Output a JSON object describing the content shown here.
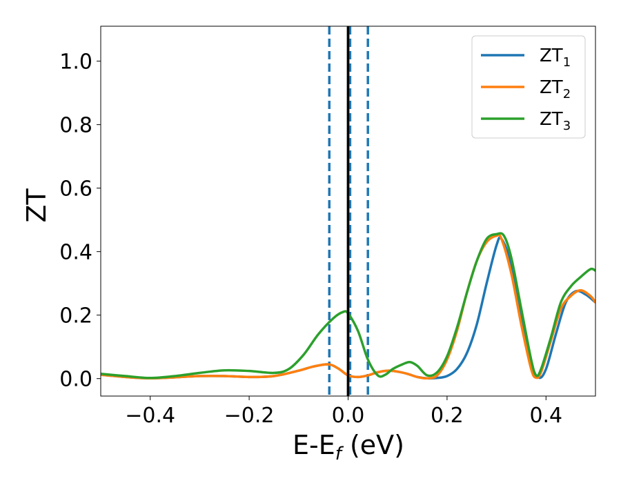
{
  "chart_data": {
    "type": "line",
    "xlabel": {
      "main": "E-E",
      "sub": "f",
      "unit": " (eV)"
    },
    "ylabel": "ZT",
    "xlim": [
      -0.5,
      0.5
    ],
    "ylim": [
      -0.055,
      1.11
    ],
    "xticks": [
      -0.4,
      -0.2,
      0.0,
      0.2,
      0.4
    ],
    "xtick_labels": [
      "−0.4",
      "−0.2",
      "0.0",
      "0.2",
      "0.4"
    ],
    "yticks": [
      0.0,
      0.2,
      0.4,
      0.6,
      0.8,
      1.0
    ],
    "ytick_labels": [
      "0.0",
      "0.2",
      "0.4",
      "0.6",
      "0.8",
      "1.0"
    ],
    "grid": false,
    "legend_position": "top-right",
    "reference_lines": [
      {
        "x": 0.0,
        "style": "solid",
        "color": "#000000"
      },
      {
        "x": -0.038,
        "style": "dashed",
        "color": "#1f77b4"
      },
      {
        "x": 0.004,
        "style": "dashed",
        "color": "#1f77b4"
      },
      {
        "x": 0.04,
        "style": "dashed",
        "color": "#1f77b4"
      }
    ],
    "series": [
      {
        "name": "ZT",
        "name_sub": "1",
        "color": "#1f77b4",
        "x": [
          -0.5,
          -0.45,
          -0.4,
          -0.35,
          -0.3,
          -0.25,
          -0.2,
          -0.15,
          -0.1,
          -0.07,
          -0.04,
          -0.02,
          0.0,
          0.02,
          0.04,
          0.06,
          0.08,
          0.1,
          0.12,
          0.14,
          0.16,
          0.18,
          0.2,
          0.22,
          0.24,
          0.26,
          0.28,
          0.3,
          0.31,
          0.33,
          0.35,
          0.37,
          0.385,
          0.4,
          0.42,
          0.44,
          0.46,
          0.48,
          0.5
        ],
        "y": [
          0.012,
          0.005,
          0.001,
          0.004,
          0.008,
          0.008,
          0.005,
          0.008,
          0.025,
          0.038,
          0.045,
          0.032,
          0.01,
          0.005,
          0.01,
          0.02,
          0.025,
          0.022,
          0.015,
          0.005,
          0.001,
          0.002,
          0.008,
          0.03,
          0.08,
          0.17,
          0.3,
          0.42,
          0.44,
          0.36,
          0.2,
          0.05,
          0.003,
          0.03,
          0.14,
          0.24,
          0.275,
          0.265,
          0.24
        ]
      },
      {
        "name": "ZT",
        "name_sub": "2",
        "color": "#ff7f0e",
        "x": [
          -0.5,
          -0.45,
          -0.4,
          -0.35,
          -0.3,
          -0.25,
          -0.2,
          -0.15,
          -0.1,
          -0.07,
          -0.04,
          -0.02,
          0.0,
          0.02,
          0.04,
          0.06,
          0.08,
          0.1,
          0.12,
          0.14,
          0.16,
          0.18,
          0.2,
          0.22,
          0.24,
          0.26,
          0.28,
          0.3,
          0.31,
          0.33,
          0.35,
          0.37,
          0.38,
          0.39,
          0.41,
          0.43,
          0.45,
          0.47,
          0.49,
          0.5
        ],
        "y": [
          0.012,
          0.005,
          0.001,
          0.004,
          0.008,
          0.008,
          0.005,
          0.008,
          0.025,
          0.038,
          0.045,
          0.032,
          0.01,
          0.005,
          0.01,
          0.02,
          0.025,
          0.022,
          0.015,
          0.005,
          0.001,
          0.01,
          0.06,
          0.15,
          0.27,
          0.37,
          0.43,
          0.45,
          0.44,
          0.33,
          0.17,
          0.03,
          0.003,
          0.02,
          0.12,
          0.22,
          0.26,
          0.278,
          0.26,
          0.24
        ]
      },
      {
        "name": "ZT",
        "name_sub": "3",
        "color": "#2ca02c",
        "x": [
          -0.5,
          -0.45,
          -0.4,
          -0.35,
          -0.3,
          -0.25,
          -0.2,
          -0.15,
          -0.12,
          -0.09,
          -0.06,
          -0.03,
          -0.01,
          0.0,
          0.02,
          0.04,
          0.06,
          0.075,
          0.09,
          0.11,
          0.125,
          0.14,
          0.16,
          0.18,
          0.2,
          0.22,
          0.24,
          0.26,
          0.28,
          0.3,
          0.315,
          0.33,
          0.35,
          0.37,
          0.38,
          0.39,
          0.41,
          0.43,
          0.45,
          0.47,
          0.49,
          0.5
        ],
        "y": [
          0.015,
          0.008,
          0.002,
          0.008,
          0.018,
          0.026,
          0.024,
          0.018,
          0.03,
          0.075,
          0.14,
          0.19,
          0.21,
          0.205,
          0.15,
          0.06,
          0.01,
          0.012,
          0.03,
          0.045,
          0.052,
          0.04,
          0.01,
          0.02,
          0.07,
          0.16,
          0.27,
          0.37,
          0.44,
          0.455,
          0.45,
          0.38,
          0.22,
          0.06,
          0.01,
          0.03,
          0.13,
          0.24,
          0.29,
          0.32,
          0.345,
          0.34
        ]
      }
    ]
  }
}
